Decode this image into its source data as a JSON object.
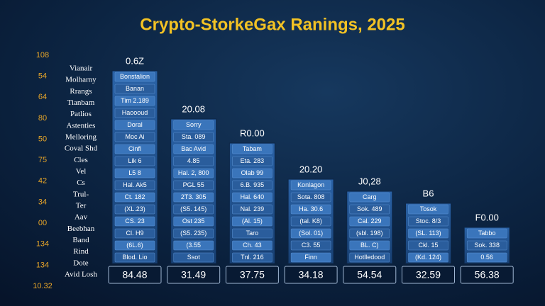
{
  "title": "Crypto-StorkeGax Ranings, 2025",
  "left_numbers": [
    "108",
    "54",
    "64",
    "80",
    "50",
    "75",
    "42",
    "34",
    "00",
    "134",
    "134",
    "10.32"
  ],
  "row_labels": [
    "Vianair",
    "Molharny",
    "Rrangs",
    "Tianbam",
    "Patlios",
    "Astenties",
    "Melloring",
    "Coval Shd",
    "Cles",
    "Vel",
    "Cs",
    "Trul-",
    "Ter",
    "Aav",
    "Beebhan",
    "Band",
    "Rind",
    "Dote",
    "Avid Losh"
  ],
  "columns": [
    {
      "header": "0.6Z",
      "cells": [
        "Bonstalion",
        "Banan",
        "Tim 2.189",
        "Haoooud",
        "Doral",
        "Moc Ai",
        "Cinfl",
        "Lik 6",
        "L5 8",
        "Hal. Ak5",
        "Ct. 182",
        "(XL.23)",
        "CS. 23",
        "Cl. H9",
        "(6L.6)",
        "Blod. Lio"
      ],
      "total": "84.48"
    },
    {
      "header": "20.08",
      "cells": [
        "Sorry",
        "Sta. 089",
        "Bac Avid",
        "4.85",
        "Hal. 2, 800",
        "PGL 55",
        "2T3. 305",
        "(S5. 145)",
        "Ost 235",
        "(S5. 235)",
        "(3.55",
        "Ssot"
      ],
      "total": "31.49"
    },
    {
      "header": "R0.00",
      "cells": [
        "Tabam",
        "Eta. 283",
        "Olab 99",
        "6.B. 935",
        "Hal. 640",
        "Nal. 239",
        "(Al. 15)",
        "Taro",
        "Ch. 43",
        "Tnl. 216"
      ],
      "total": "37.75"
    },
    {
      "header": "20.20",
      "cells": [
        "Konlagon",
        "Sota. 808",
        "Ha. 30.6",
        "(tal. K8)",
        "(Sol. 01)",
        "C3. 55",
        "Finn"
      ],
      "total": "34.18"
    },
    {
      "header": "J0,28",
      "cells": [
        "Carg",
        "Sok. 489",
        "Cal. 229",
        "(sbl. 198)",
        "BL. C)",
        "Hotlledood"
      ],
      "total": "54.54"
    },
    {
      "header": "B6",
      "cells": [
        "Tosok",
        "Stoc. 8/3",
        "(SL. 113)",
        "Ckl. 15",
        "(Kd. 124)"
      ],
      "total": "32.59"
    },
    {
      "header": "F0.00",
      "cells": [
        "Tabbo",
        "Sok. 338",
        "0.56"
      ],
      "total": "56.38"
    }
  ]
}
